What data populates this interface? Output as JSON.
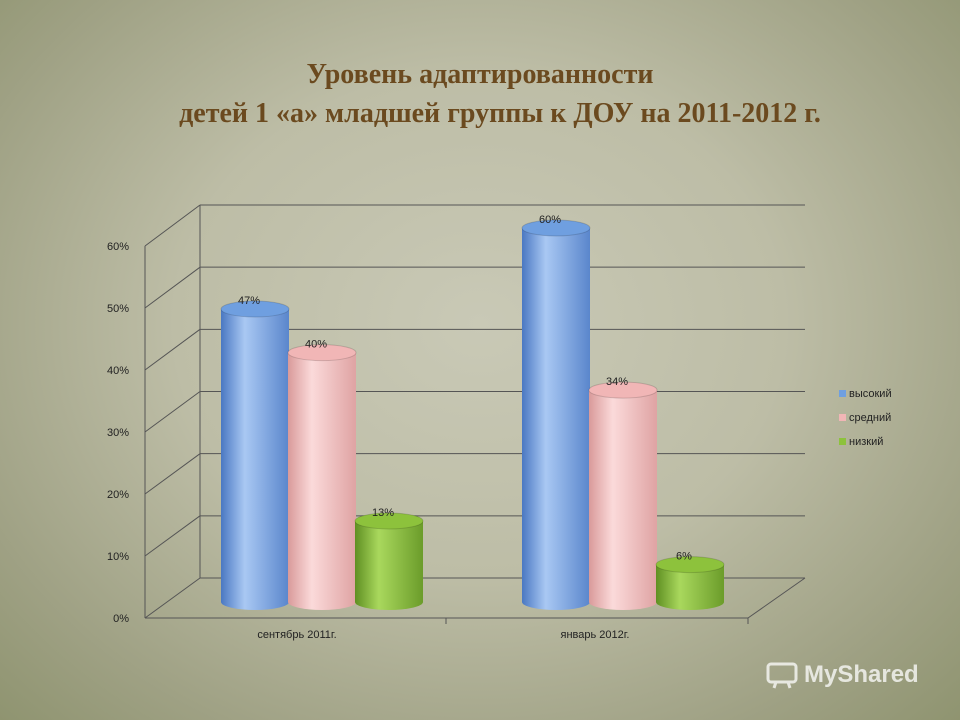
{
  "title_line1": "Уровень адаптированности",
  "title_line2": "детей 1 «а» младшей группы к ДОУ на 2011-2012 г.",
  "watermark": "MyShared",
  "chart_data": {
    "type": "bar",
    "title": "Уровень адаптированности детей 1 «а» младшей группы к ДОУ на 2011-2012 г.",
    "categories": [
      "сентябрь 2011г.",
      "январь 2012г."
    ],
    "series": [
      {
        "name": "высокий",
        "values": [
          47,
          60
        ],
        "labels": [
          "47%",
          "60%"
        ],
        "color": "#6f9fe0"
      },
      {
        "name": "средний",
        "values": [
          40,
          34
        ],
        "labels": [
          "40%",
          "34%"
        ],
        "color": "#f1b6b6"
      },
      {
        "name": "низкий",
        "values": [
          13,
          6
        ],
        "labels": [
          "13%",
          "6%"
        ],
        "color": "#8dc23c"
      }
    ],
    "y_ticks": [
      "0%",
      "10%",
      "20%",
      "30%",
      "40%",
      "50%",
      "60%"
    ],
    "ylim": [
      0,
      60
    ],
    "xlabel": "",
    "ylabel": "",
    "grid": true,
    "legend": "right",
    "style": "3d-cylinder"
  }
}
